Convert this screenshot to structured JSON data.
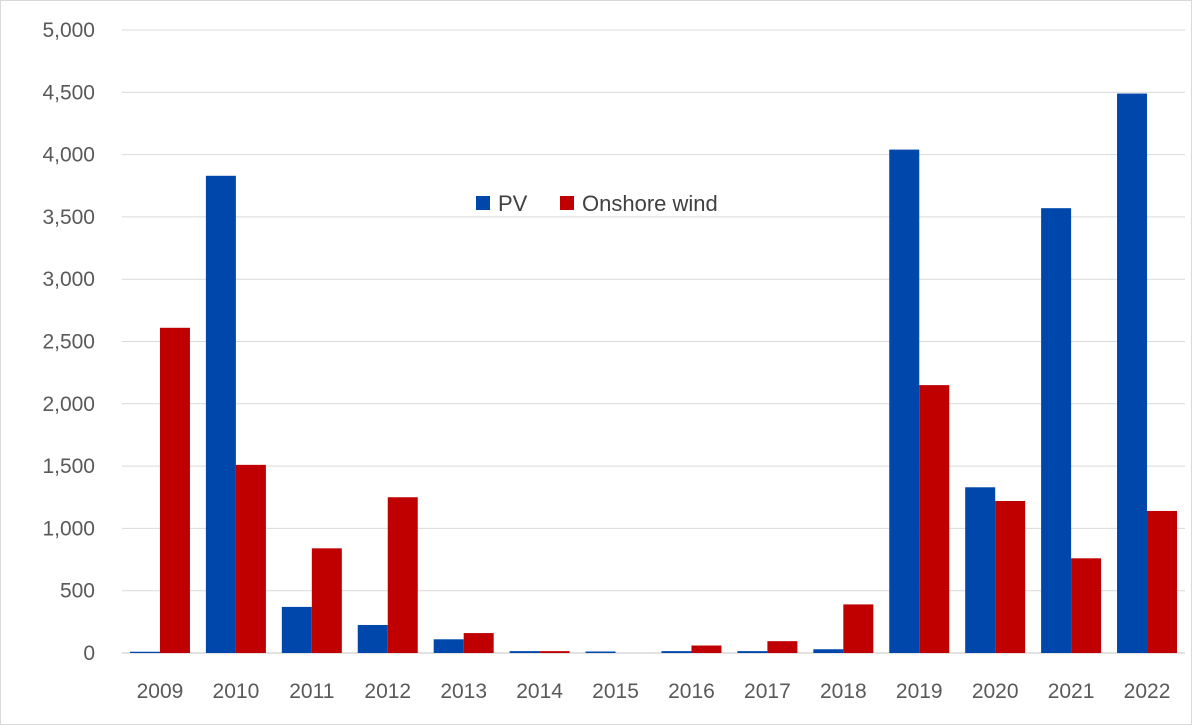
{
  "chart_data": {
    "type": "bar",
    "title": "",
    "xlabel": "",
    "ylabel": "",
    "categories": [
      "2009",
      "2010",
      "2011",
      "2012",
      "2013",
      "2014",
      "2015",
      "2016",
      "2017",
      "2018",
      "2019",
      "2020",
      "2021",
      "2022"
    ],
    "series": [
      {
        "name": "PV",
        "color": "#0047AB",
        "values": [
          10,
          3830,
          370,
          225,
          110,
          15,
          12,
          15,
          15,
          30,
          4040,
          1330,
          3570,
          4490
        ]
      },
      {
        "name": "Onshore wind",
        "color": "#C00000",
        "values": [
          2610,
          1510,
          840,
          1250,
          160,
          15,
          0,
          60,
          95,
          390,
          2150,
          1220,
          760,
          1140
        ]
      }
    ],
    "ylim": [
      0,
      5000
    ],
    "yticks": [
      0,
      500,
      1000,
      1500,
      2000,
      2500,
      3000,
      3500,
      4000,
      4500,
      5000
    ],
    "ytick_labels": [
      "0",
      "500",
      "1,000",
      "1,500",
      "2,000",
      "2,500",
      "3,000",
      "3,500",
      "4,000",
      "4,500",
      "5,000"
    ],
    "grid": true,
    "legend_position": "top-center"
  }
}
